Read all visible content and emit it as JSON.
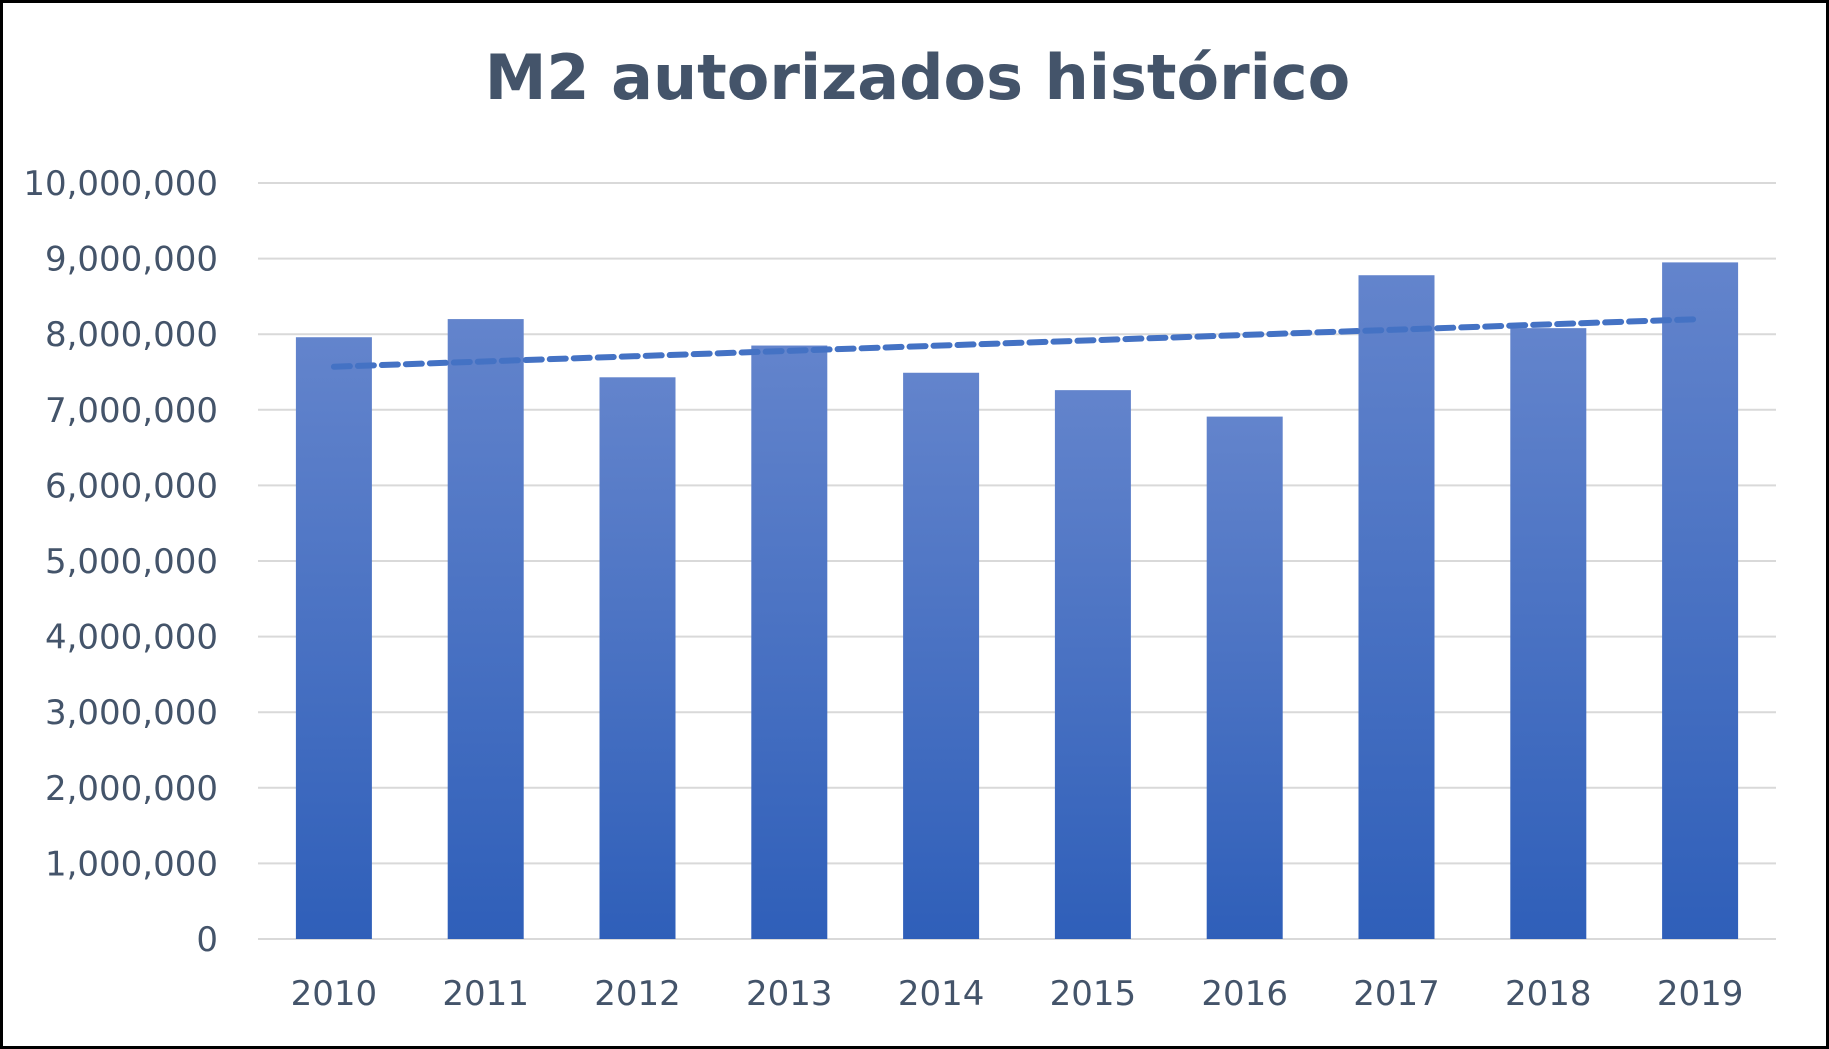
{
  "chart_data": {
    "type": "bar",
    "title": "M2 autorizados histórico",
    "xlabel": "",
    "ylabel": "",
    "categories": [
      "2010",
      "2011",
      "2012",
      "2013",
      "2014",
      "2015",
      "2016",
      "2017",
      "2018",
      "2019"
    ],
    "series": [
      {
        "values": [
          7960000,
          8200000,
          7430000,
          7850000,
          7490000,
          7260000,
          6910000,
          8780000,
          8080000,
          8950000
        ]
      }
    ],
    "trendline": {
      "type": "linear",
      "style": "dashed",
      "start": 7570000,
      "end": 8200000
    },
    "ylim": [
      0,
      10000000
    ],
    "yticks": [
      "0",
      "1,000,000",
      "2,000,000",
      "3,000,000",
      "4,000,000",
      "5,000,000",
      "6,000,000",
      "7,000,000",
      "8,000,000",
      "9,000,000",
      "10,000,000"
    ],
    "grid": true,
    "legend": "none",
    "colors": {
      "bar_top": "#6384cc",
      "bar_bottom": "#2f5fb9",
      "trendline": "#4472c4",
      "gridline": "#d9d9d9",
      "text": "#44546a"
    }
  }
}
